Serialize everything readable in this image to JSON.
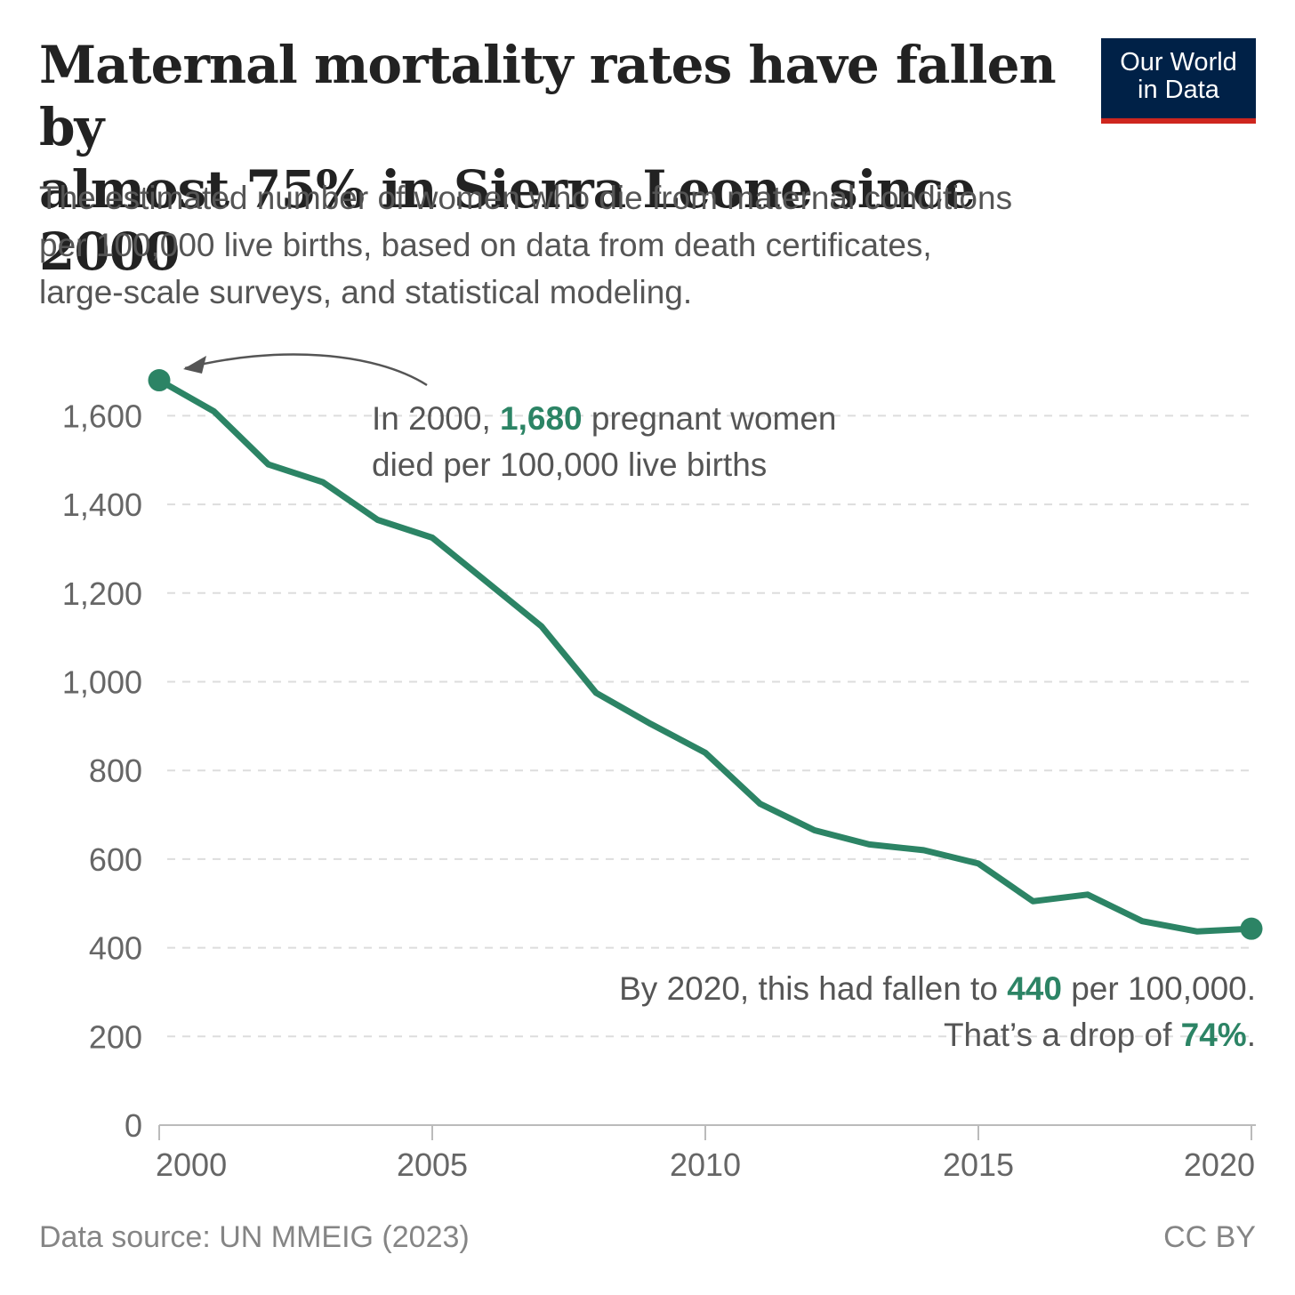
{
  "header": {
    "title_line1": "Maternal mortality rates have fallen by",
    "title_line2": "almost 75% in Sierra Leone since 2000",
    "subtitle_line1": "The estimated number of women who die from maternal conditions",
    "subtitle_line2": "per 100,000 live births, based on data from death certificates,",
    "subtitle_line3": "large-scale surveys, and statistical modeling."
  },
  "logo": {
    "line1": "Our World",
    "line2": "in Data"
  },
  "footer": {
    "source": "Data source: UN MMEIG (2023)",
    "license": "CC BY"
  },
  "colors": {
    "line": "#2c8465",
    "logo_bg": "#002147",
    "logo_stripe": "#ce261e",
    "grid": "#dddddd",
    "axis": "#bbbbbb"
  },
  "chart_data": {
    "type": "line",
    "title": "Maternal mortality rates have fallen by almost 75% in Sierra Leone since 2000",
    "xlabel": "",
    "ylabel": "",
    "xlim": [
      2000,
      2020
    ],
    "ylim": [
      0,
      1700
    ],
    "grid": true,
    "x_ticks": [
      2000,
      2005,
      2010,
      2015,
      2020
    ],
    "x_tick_labels": [
      "2000",
      "2005",
      "2010",
      "2015",
      "2020"
    ],
    "y_ticks": [
      0,
      200,
      400,
      600,
      800,
      1000,
      1200,
      1400,
      1600
    ],
    "y_tick_labels": [
      "0",
      "200",
      "400",
      "600",
      "800",
      "1,000",
      "1,200",
      "1,400",
      "1,600"
    ],
    "series": [
      {
        "x": [
          2000,
          2001,
          2002,
          2003,
          2004,
          2005,
          2006,
          2007,
          2008,
          2009,
          2010,
          2011,
          2012,
          2013,
          2014,
          2015,
          2016,
          2017,
          2018,
          2019,
          2020
        ],
        "values": [
          1680,
          1610,
          1490,
          1450,
          1365,
          1325,
          1225,
          1125,
          975,
          905,
          840,
          725,
          665,
          633,
          620,
          590,
          505,
          520,
          460,
          437,
          443
        ]
      }
    ],
    "annotations": [
      {
        "line1_pre": "In 2000, ",
        "line1_value": "1,680",
        "line1_post": " pregnant women",
        "line2": "died per 100,000 live births"
      },
      {
        "line1_pre": "By 2020, this had fallen to ",
        "line1_value": "440",
        "line1_post": " per 100,000.",
        "line2_pre": "That’s a drop of ",
        "line2_value": "74%",
        "line2_post": "."
      }
    ]
  }
}
